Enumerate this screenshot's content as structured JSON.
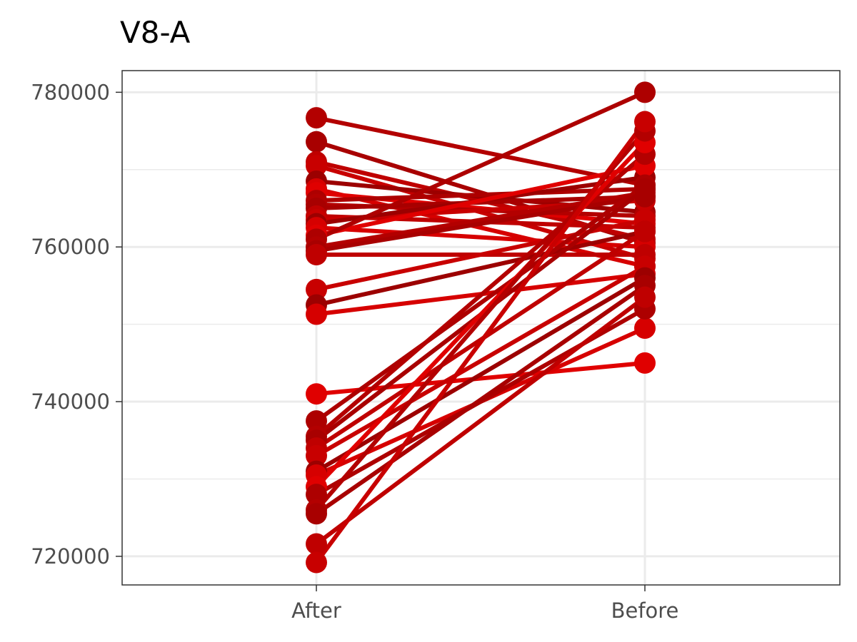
{
  "chart_data": {
    "type": "line",
    "title": "V8-A",
    "xlabel": "",
    "ylabel": "",
    "categories": [
      "After",
      "Before"
    ],
    "y_ticks": [
      720000,
      740000,
      760000,
      780000
    ],
    "y_tick_labels": [
      "720000",
      "740000",
      "760000",
      "780000"
    ],
    "ylim": [
      716300,
      782800
    ],
    "grid": true,
    "legend": "none",
    "line_colors": [
      "#b30000",
      "#a80000",
      "#bf0000",
      "#c80000",
      "#9c0000",
      "#d60000",
      "#e00000",
      "#ad0000"
    ],
    "series": [
      {
        "values": [
          776700,
          768000
        ]
      },
      {
        "values": [
          773600,
          760500
        ]
      },
      {
        "values": [
          771000,
          761000
        ]
      },
      {
        "values": [
          770500,
          758500
        ]
      },
      {
        "values": [
          768500,
          764500
        ]
      },
      {
        "values": [
          767500,
          757500
        ]
      },
      {
        "values": [
          767000,
          763000
        ]
      },
      {
        "values": [
          766000,
          767500
        ]
      },
      {
        "values": [
          765500,
          764000
        ]
      },
      {
        "values": [
          765000,
          766500
        ]
      },
      {
        "values": [
          764000,
          762500
        ]
      },
      {
        "values": [
          763500,
          766000
        ]
      },
      {
        "values": [
          763000,
          769000
        ]
      },
      {
        "values": [
          762500,
          760000
        ]
      },
      {
        "values": [
          761500,
          770500
        ]
      },
      {
        "values": [
          761000,
          780000
        ]
      },
      {
        "values": [
          760000,
          767000
        ]
      },
      {
        "values": [
          759500,
          766500
        ]
      },
      {
        "values": [
          759000,
          759000
        ]
      },
      {
        "values": [
          754500,
          763500
        ]
      },
      {
        "values": [
          752500,
          762000
        ]
      },
      {
        "values": [
          751300,
          756500
        ]
      },
      {
        "values": [
          741000,
          745000
        ]
      },
      {
        "values": [
          737500,
          768000
        ]
      },
      {
        "values": [
          735500,
          772000
        ]
      },
      {
        "values": [
          735000,
          767500
        ]
      },
      {
        "values": [
          734000,
          762000
        ]
      },
      {
        "values": [
          733000,
          757500
        ]
      },
      {
        "values": [
          731000,
          756000
        ]
      },
      {
        "values": [
          730500,
          749500
        ]
      },
      {
        "values": [
          729000,
          773500
        ]
      },
      {
        "values": [
          728000,
          752000
        ]
      },
      {
        "values": [
          726000,
          775000
        ]
      },
      {
        "values": [
          725500,
          755000
        ]
      },
      {
        "values": [
          721600,
          753500
        ]
      },
      {
        "values": [
          719200,
          776200
        ]
      }
    ]
  }
}
